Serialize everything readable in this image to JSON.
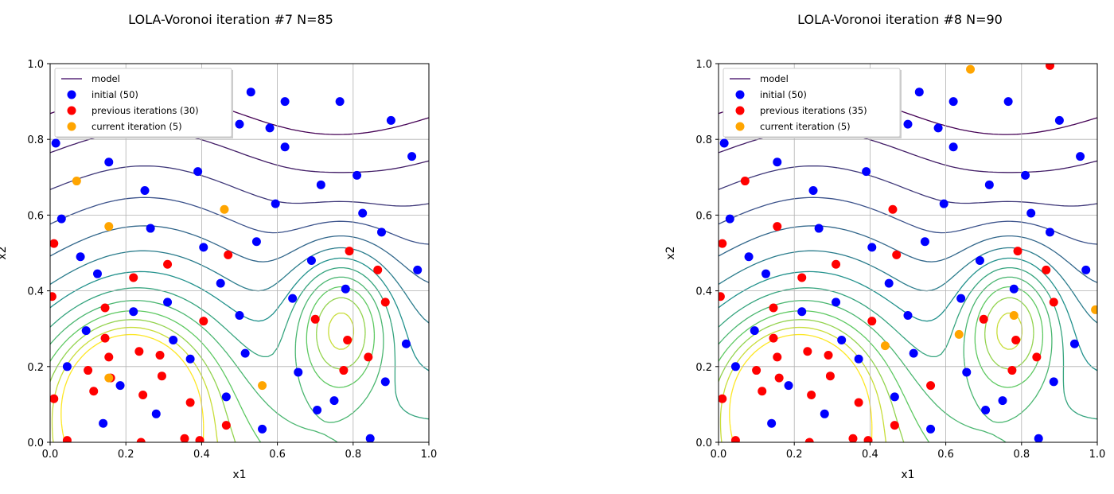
{
  "figure": {
    "panels": [
      {
        "title": "LOLA-Voronoi iteration #7 N=85",
        "xlabel": "x1",
        "ylabel": "x2",
        "legend": [
          "model",
          "initial (50)",
          "previous iterations (30)",
          "current iteration (5)"
        ]
      },
      {
        "title": "LOLA-Voronoi iteration #8 N=90",
        "xlabel": "x1",
        "ylabel": "x2",
        "legend": [
          "model",
          "initial (50)",
          "previous iterations (35)",
          "current iteration (5)"
        ]
      }
    ],
    "tick_labels": [
      "0.0",
      "0.2",
      "0.4",
      "0.6",
      "0.8",
      "1.0"
    ]
  },
  "chart_data": [
    {
      "type": "scatter",
      "title": "LOLA-Voronoi iteration #7 N=85",
      "xlabel": "x1",
      "ylabel": "x2",
      "xlim": [
        0,
        1
      ],
      "ylim": [
        0,
        1
      ],
      "grid": true,
      "legend_position": "top-left",
      "series": [
        {
          "name": "model",
          "color": "#5a2a7a"
        },
        {
          "name": "initial (50)",
          "color": "#0000ff",
          "points": [
            [
              0.015,
              0.79
            ],
            [
              0.03,
              0.59
            ],
            [
              0.045,
              0.2
            ],
            [
              0.08,
              0.49
            ],
            [
              0.095,
              0.295
            ],
            [
              0.125,
              0.445
            ],
            [
              0.14,
              0.05
            ],
            [
              0.155,
              0.74
            ],
            [
              0.185,
              0.15
            ],
            [
              0.22,
              0.345
            ],
            [
              0.25,
              0.665
            ],
            [
              0.265,
              0.565
            ],
            [
              0.28,
              0.075
            ],
            [
              0.31,
              0.37
            ],
            [
              0.325,
              0.27
            ],
            [
              0.37,
              0.22
            ],
            [
              0.39,
              0.715
            ],
            [
              0.405,
              0.515
            ],
            [
              0.45,
              0.42
            ],
            [
              0.465,
              0.12
            ],
            [
              0.5,
              0.335
            ],
            [
              0.515,
              0.235
            ],
            [
              0.53,
              0.925
            ],
            [
              0.545,
              0.53
            ],
            [
              0.56,
              0.035
            ],
            [
              0.58,
              0.83
            ],
            [
              0.595,
              0.63
            ],
            [
              0.62,
              0.78
            ],
            [
              0.64,
              0.38
            ],
            [
              0.655,
              0.185
            ],
            [
              0.69,
              0.48
            ],
            [
              0.705,
              0.085
            ],
            [
              0.715,
              0.68
            ],
            [
              0.75,
              0.11
            ],
            [
              0.765,
              0.9
            ],
            [
              0.78,
              0.405
            ],
            [
              0.81,
              0.705
            ],
            [
              0.825,
              0.605
            ],
            [
              0.845,
              0.01
            ],
            [
              0.875,
              0.555
            ],
            [
              0.885,
              0.16
            ],
            [
              0.9,
              0.85
            ],
            [
              0.94,
              0.26
            ],
            [
              0.955,
              0.755
            ],
            [
              0.97,
              0.455
            ],
            [
              0.36,
              0.875
            ],
            [
              0.62,
              0.9
            ],
            [
              0.14,
              0.88
            ],
            [
              0.25,
              0.88
            ],
            [
              0.5,
              0.84
            ]
          ]
        },
        {
          "name": "previous iterations (30)",
          "color": "#ff0000",
          "points": [
            [
              0.005,
              0.385
            ],
            [
              0.01,
              0.525
            ],
            [
              0.01,
              0.115
            ],
            [
              0.045,
              0.005
            ],
            [
              0.1,
              0.19
            ],
            [
              0.115,
              0.135
            ],
            [
              0.145,
              0.355
            ],
            [
              0.145,
              0.275
            ],
            [
              0.155,
              0.225
            ],
            [
              0.16,
              0.17
            ],
            [
              0.22,
              0.435
            ],
            [
              0.235,
              0.24
            ],
            [
              0.245,
              0.125
            ],
            [
              0.24,
              0.0
            ],
            [
              0.29,
              0.23
            ],
            [
              0.295,
              0.175
            ],
            [
              0.31,
              0.47
            ],
            [
              0.355,
              0.01
            ],
            [
              0.37,
              0.105
            ],
            [
              0.395,
              0.005
            ],
            [
              0.405,
              0.32
            ],
            [
              0.47,
              0.495
            ],
            [
              0.465,
              0.045
            ],
            [
              0.7,
              0.325
            ],
            [
              0.775,
              0.19
            ],
            [
              0.785,
              0.27
            ],
            [
              0.79,
              0.505
            ],
            [
              0.84,
              0.225
            ],
            [
              0.865,
              0.455
            ],
            [
              0.885,
              0.37
            ]
          ]
        },
        {
          "name": "current iteration (5)",
          "color": "#ffa500",
          "points": [
            [
              0.07,
              0.69
            ],
            [
              0.155,
              0.57
            ],
            [
              0.155,
              0.17
            ],
            [
              0.46,
              0.615
            ],
            [
              0.56,
              0.15
            ]
          ]
        }
      ]
    },
    {
      "type": "scatter",
      "title": "LOLA-Voronoi iteration #8 N=90",
      "xlabel": "x1",
      "ylabel": "x2",
      "xlim": [
        0,
        1
      ],
      "ylim": [
        0,
        1
      ],
      "grid": true,
      "legend_position": "top-left",
      "series": [
        {
          "name": "model",
          "color": "#5a2a7a"
        },
        {
          "name": "initial (50)",
          "color": "#0000ff",
          "points": [
            [
              0.015,
              0.79
            ],
            [
              0.03,
              0.59
            ],
            [
              0.045,
              0.2
            ],
            [
              0.08,
              0.49
            ],
            [
              0.095,
              0.295
            ],
            [
              0.125,
              0.445
            ],
            [
              0.14,
              0.05
            ],
            [
              0.155,
              0.74
            ],
            [
              0.185,
              0.15
            ],
            [
              0.22,
              0.345
            ],
            [
              0.25,
              0.665
            ],
            [
              0.265,
              0.565
            ],
            [
              0.28,
              0.075
            ],
            [
              0.31,
              0.37
            ],
            [
              0.325,
              0.27
            ],
            [
              0.37,
              0.22
            ],
            [
              0.39,
              0.715
            ],
            [
              0.405,
              0.515
            ],
            [
              0.45,
              0.42
            ],
            [
              0.465,
              0.12
            ],
            [
              0.5,
              0.335
            ],
            [
              0.515,
              0.235
            ],
            [
              0.53,
              0.925
            ],
            [
              0.545,
              0.53
            ],
            [
              0.56,
              0.035
            ],
            [
              0.58,
              0.83
            ],
            [
              0.595,
              0.63
            ],
            [
              0.62,
              0.78
            ],
            [
              0.64,
              0.38
            ],
            [
              0.655,
              0.185
            ],
            [
              0.69,
              0.48
            ],
            [
              0.705,
              0.085
            ],
            [
              0.715,
              0.68
            ],
            [
              0.75,
              0.11
            ],
            [
              0.765,
              0.9
            ],
            [
              0.78,
              0.405
            ],
            [
              0.81,
              0.705
            ],
            [
              0.825,
              0.605
            ],
            [
              0.845,
              0.01
            ],
            [
              0.875,
              0.555
            ],
            [
              0.885,
              0.16
            ],
            [
              0.9,
              0.85
            ],
            [
              0.94,
              0.26
            ],
            [
              0.955,
              0.755
            ],
            [
              0.97,
              0.455
            ],
            [
              0.36,
              0.875
            ],
            [
              0.62,
              0.9
            ],
            [
              0.14,
              0.88
            ],
            [
              0.25,
              0.88
            ],
            [
              0.5,
              0.84
            ]
          ]
        },
        {
          "name": "previous iterations (35)",
          "color": "#ff0000",
          "points": [
            [
              0.005,
              0.385
            ],
            [
              0.01,
              0.525
            ],
            [
              0.01,
              0.115
            ],
            [
              0.045,
              0.005
            ],
            [
              0.1,
              0.19
            ],
            [
              0.115,
              0.135
            ],
            [
              0.145,
              0.355
            ],
            [
              0.145,
              0.275
            ],
            [
              0.155,
              0.225
            ],
            [
              0.16,
              0.17
            ],
            [
              0.22,
              0.435
            ],
            [
              0.235,
              0.24
            ],
            [
              0.245,
              0.125
            ],
            [
              0.24,
              0.0
            ],
            [
              0.29,
              0.23
            ],
            [
              0.295,
              0.175
            ],
            [
              0.31,
              0.47
            ],
            [
              0.355,
              0.01
            ],
            [
              0.37,
              0.105
            ],
            [
              0.395,
              0.005
            ],
            [
              0.405,
              0.32
            ],
            [
              0.47,
              0.495
            ],
            [
              0.465,
              0.045
            ],
            [
              0.7,
              0.325
            ],
            [
              0.775,
              0.19
            ],
            [
              0.785,
              0.27
            ],
            [
              0.79,
              0.505
            ],
            [
              0.84,
              0.225
            ],
            [
              0.865,
              0.455
            ],
            [
              0.885,
              0.37
            ],
            [
              0.07,
              0.69
            ],
            [
              0.155,
              0.57
            ],
            [
              0.46,
              0.615
            ],
            [
              0.56,
              0.15
            ],
            [
              0.875,
              0.995
            ]
          ]
        },
        {
          "name": "current iteration (5)",
          "color": "#ffa500",
          "points": [
            [
              0.665,
              0.985
            ],
            [
              0.995,
              0.35
            ],
            [
              0.44,
              0.255
            ],
            [
              0.635,
              0.285
            ],
            [
              0.78,
              0.335
            ]
          ]
        }
      ]
    }
  ]
}
